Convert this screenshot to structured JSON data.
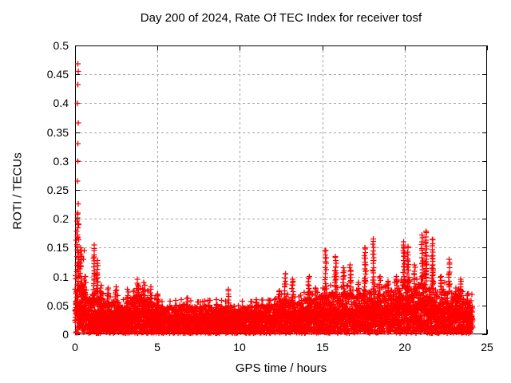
{
  "title": "Day 200 of 2024, Rate Of TEC Index for receiver tosf",
  "axes": {
    "x": {
      "label": "GPS time / hours",
      "min": 0,
      "max": 25,
      "tick_values": [
        0,
        5,
        10,
        15,
        20,
        25
      ],
      "tick_labels": [
        "0",
        "5",
        "10",
        "15",
        "20",
        "25"
      ]
    },
    "y": {
      "label": "ROTI / TECUs",
      "min": 0,
      "max": 0.5,
      "tick_values": [
        0,
        0.05,
        0.1,
        0.15,
        0.2,
        0.25,
        0.3,
        0.35,
        0.4,
        0.45,
        0.5
      ],
      "tick_labels": [
        "0",
        "0.05",
        "0.1",
        "0.15",
        "0.2",
        "0.25",
        "0.3",
        "0.35",
        "0.4",
        "0.45",
        "0.5"
      ]
    }
  },
  "colors": {
    "marker": "#ff0000",
    "grid": "#a6a6a6",
    "axis": "#000000",
    "background": "#ffffff",
    "text": "#000000"
  },
  "chart_data": {
    "type": "scatter",
    "marker": "plus",
    "title": "Day 200 of 2024, Rate Of TEC Index for receiver tosf",
    "xlabel": "GPS time / hours",
    "ylabel": "ROTI / TECUs",
    "xlim": [
      0,
      25
    ],
    "ylim": [
      0,
      0.5
    ],
    "grid": true,
    "legend": null,
    "x_data_start": 0,
    "x_data_end": 24.1,
    "encoding_note": "Dense ROTI scatter: solid band of points from 0 up to dense_band.top (per hour in dense_band.x), plus vertical spike clusters {x,top,w} and isolated high outliers [x,y].",
    "dense_band": {
      "x": [
        0,
        0.5,
        1,
        1.5,
        2,
        2.5,
        3,
        3.5,
        4,
        4.5,
        5,
        5.5,
        6,
        6.5,
        7,
        7.5,
        8,
        8.5,
        9,
        9.5,
        10,
        10.5,
        11,
        11.5,
        12,
        12.5,
        13,
        13.5,
        14,
        14.5,
        15,
        15.5,
        16,
        16.5,
        17,
        17.5,
        18,
        18.5,
        19,
        19.5,
        20,
        20.5,
        21,
        21.5,
        22,
        22.5,
        23,
        23.5,
        24
      ],
      "top": [
        0.09,
        0.075,
        0.06,
        0.065,
        0.055,
        0.06,
        0.05,
        0.065,
        0.07,
        0.065,
        0.05,
        0.048,
        0.05,
        0.052,
        0.05,
        0.048,
        0.05,
        0.052,
        0.05,
        0.048,
        0.05,
        0.048,
        0.05,
        0.052,
        0.05,
        0.06,
        0.06,
        0.055,
        0.065,
        0.06,
        0.07,
        0.075,
        0.07,
        0.075,
        0.065,
        0.075,
        0.08,
        0.07,
        0.075,
        0.08,
        0.085,
        0.08,
        0.09,
        0.085,
        0.075,
        0.08,
        0.07,
        0.065,
        0.06
      ]
    },
    "spikes": [
      {
        "x": 0.15,
        "top": 0.21,
        "w": 0.22
      },
      {
        "x": 0.35,
        "top": 0.15,
        "w": 0.15
      },
      {
        "x": 0.6,
        "top": 0.1,
        "w": 0.2
      },
      {
        "x": 1.15,
        "top": 0.155,
        "w": 0.12
      },
      {
        "x": 1.35,
        "top": 0.128,
        "w": 0.1
      },
      {
        "x": 1.6,
        "top": 0.085,
        "w": 0.15
      },
      {
        "x": 2.0,
        "top": 0.08,
        "w": 0.15
      },
      {
        "x": 2.5,
        "top": 0.082,
        "w": 0.15
      },
      {
        "x": 3.2,
        "top": 0.078,
        "w": 0.15
      },
      {
        "x": 3.8,
        "top": 0.095,
        "w": 0.2
      },
      {
        "x": 4.2,
        "top": 0.09,
        "w": 0.15
      },
      {
        "x": 4.6,
        "top": 0.082,
        "w": 0.15
      },
      {
        "x": 5.0,
        "top": 0.07,
        "w": 0.12
      },
      {
        "x": 6.8,
        "top": 0.062,
        "w": 0.15
      },
      {
        "x": 9.3,
        "top": 0.078,
        "w": 0.08
      },
      {
        "x": 11.0,
        "top": 0.06,
        "w": 0.12
      },
      {
        "x": 12.4,
        "top": 0.075,
        "w": 0.12
      },
      {
        "x": 12.75,
        "top": 0.105,
        "w": 0.15
      },
      {
        "x": 13.2,
        "top": 0.095,
        "w": 0.12
      },
      {
        "x": 14.2,
        "top": 0.1,
        "w": 0.18
      },
      {
        "x": 14.6,
        "top": 0.08,
        "w": 0.12
      },
      {
        "x": 15.2,
        "top": 0.145,
        "w": 0.15
      },
      {
        "x": 15.8,
        "top": 0.135,
        "w": 0.15
      },
      {
        "x": 16.3,
        "top": 0.115,
        "w": 0.15
      },
      {
        "x": 16.7,
        "top": 0.12,
        "w": 0.15
      },
      {
        "x": 17.2,
        "top": 0.09,
        "w": 0.12
      },
      {
        "x": 17.6,
        "top": 0.15,
        "w": 0.13
      },
      {
        "x": 18.1,
        "top": 0.165,
        "w": 0.12
      },
      {
        "x": 18.5,
        "top": 0.1,
        "w": 0.15
      },
      {
        "x": 19.0,
        "top": 0.092,
        "w": 0.18
      },
      {
        "x": 19.5,
        "top": 0.1,
        "w": 0.13
      },
      {
        "x": 19.95,
        "top": 0.16,
        "w": 0.12
      },
      {
        "x": 20.2,
        "top": 0.152,
        "w": 0.1
      },
      {
        "x": 20.6,
        "top": 0.12,
        "w": 0.14
      },
      {
        "x": 21.05,
        "top": 0.172,
        "w": 0.12
      },
      {
        "x": 21.3,
        "top": 0.178,
        "w": 0.1
      },
      {
        "x": 21.7,
        "top": 0.164,
        "w": 0.11
      },
      {
        "x": 22.2,
        "top": 0.1,
        "w": 0.14
      },
      {
        "x": 22.7,
        "top": 0.13,
        "w": 0.1
      },
      {
        "x": 23.1,
        "top": 0.08,
        "w": 0.13
      },
      {
        "x": 23.4,
        "top": 0.095,
        "w": 0.1
      },
      {
        "x": 23.8,
        "top": 0.07,
        "w": 0.15
      }
    ],
    "outliers": [
      [
        0.18,
        0.468
      ],
      [
        0.2,
        0.455
      ],
      [
        0.17,
        0.432
      ],
      [
        0.15,
        0.4
      ],
      [
        0.2,
        0.366
      ],
      [
        0.17,
        0.33
      ],
      [
        0.18,
        0.3
      ],
      [
        0.15,
        0.265
      ],
      [
        0.2,
        0.226
      ],
      [
        0.22,
        0.19
      ],
      [
        0.55,
        0.145
      ],
      [
        0.5,
        0.13
      ]
    ]
  }
}
